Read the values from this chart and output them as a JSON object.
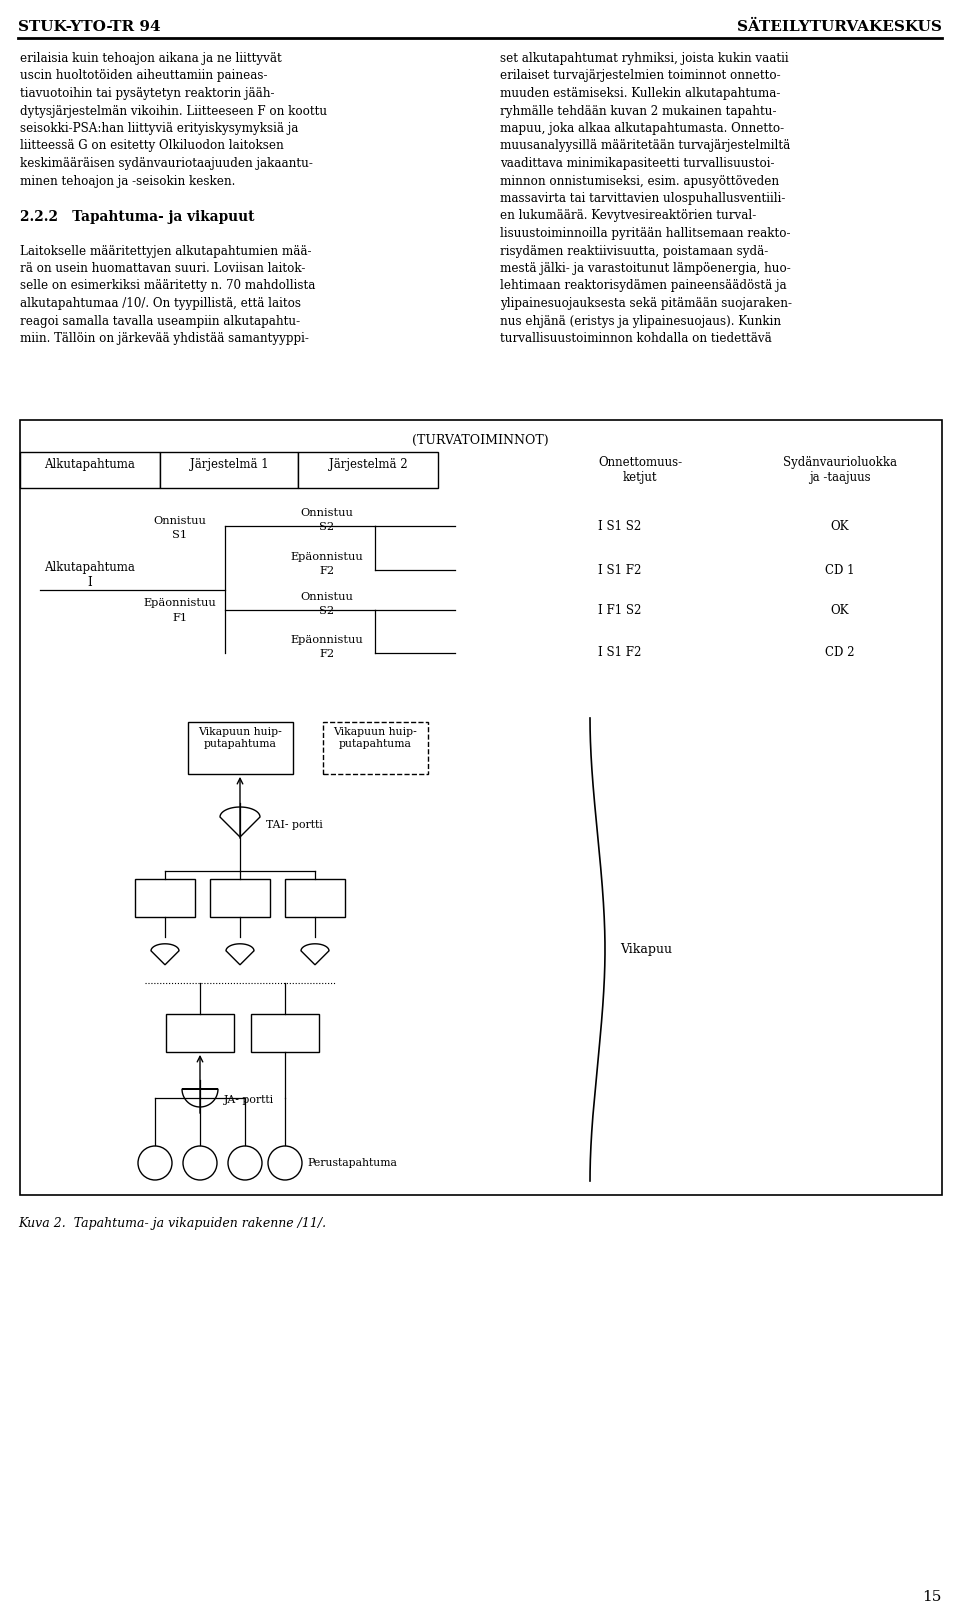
{
  "header_left": "STUK-YTO-TR 94",
  "header_right": "SÄTEILYTURVAKESKUS",
  "page_number": "15",
  "bg_color": "#ffffff",
  "text_color": "#000000",
  "diagram_title": "(TURVATOIMINNOT)",
  "or_gate_label": "TAI- portti",
  "and_gate_label": "JA- portti",
  "base_event_label": "Perustapahtuma",
  "vikapuu_label": "Vikapuu",
  "caption": "Kuva 2.  Tapahtuma- ja vikapuiden rakenne /11/.",
  "left_lines": [
    "erilaisia kuin tehoajon aikana ja ne liittyvät",
    "uscin huoltotöiden aiheuttamiin paineas-",
    "tiavuotoihin tai pysäytetyn reaktorin jääh-",
    "dytysjärjestelmän vikoihin. Liitteeseen F on koottu",
    "seisokki-PSA:han liittyviä erityiskysymyksiä ja",
    "liitteessä G on esitetty Olkiluodon laitoksen",
    "keskimääräisen sydänvauriotaajuuden jakaantu-",
    "minen tehoajon ja -seisokin kesken.",
    "",
    "2.2.2   Tapahtuma- ja vikapuut",
    "",
    "Laitokselle määritettyjen alkutapahtumien mää-",
    "rä on usein huomattavan suuri. Loviisan laitok-",
    "selle on esimerkiksi määritetty n. 70 mahdollista",
    "alkutapahtumaa /10/. On tyypillistä, että laitos",
    "reagoi samalla tavalla useampiin alkutapahtu-",
    "miin. Tällöin on järkevää yhdistää samantyyppi-"
  ],
  "right_lines": [
    "set alkutapahtumat ryhmiksi, joista kukin vaatii",
    "erilaiset turvajärjestelmien toiminnot onnetto-",
    "muuden estämiseksi. Kullekin alkutapahtuma-",
    "ryhmälle tehdään kuvan 2 mukainen tapahtu-",
    "mapuu, joka alkaa alkutapahtumasta. Onnetto-",
    "muusanalyysillä määritetään turvajärjestelmiltä",
    "vaadittava minimikapasiteetti turvallisuustoi-",
    "minnon onnistumiseksi, esim. apusyöttöveden",
    "massavirta tai tarvittavien ulospuhallusventiili-",
    "en lukumäärä. Kevytvesireaktörien turval-",
    "lisuustoiminnoilla pyritään hallitsemaan reakto-",
    "risydämen reaktiivisuutta, poistamaan sydä-",
    "mestä jälki- ja varastoitunut lämpöenergia, huo-",
    "lehtimaan reaktorisydämen paineensäädöstä ja",
    "ylipainesuojauksesta sekä pitämään suojaraken-",
    "nus ehjänä (eristys ja ylipainesuojaus). Kunkin",
    "turvallisuustoiminnon kohdalla on tiedettävä"
  ]
}
